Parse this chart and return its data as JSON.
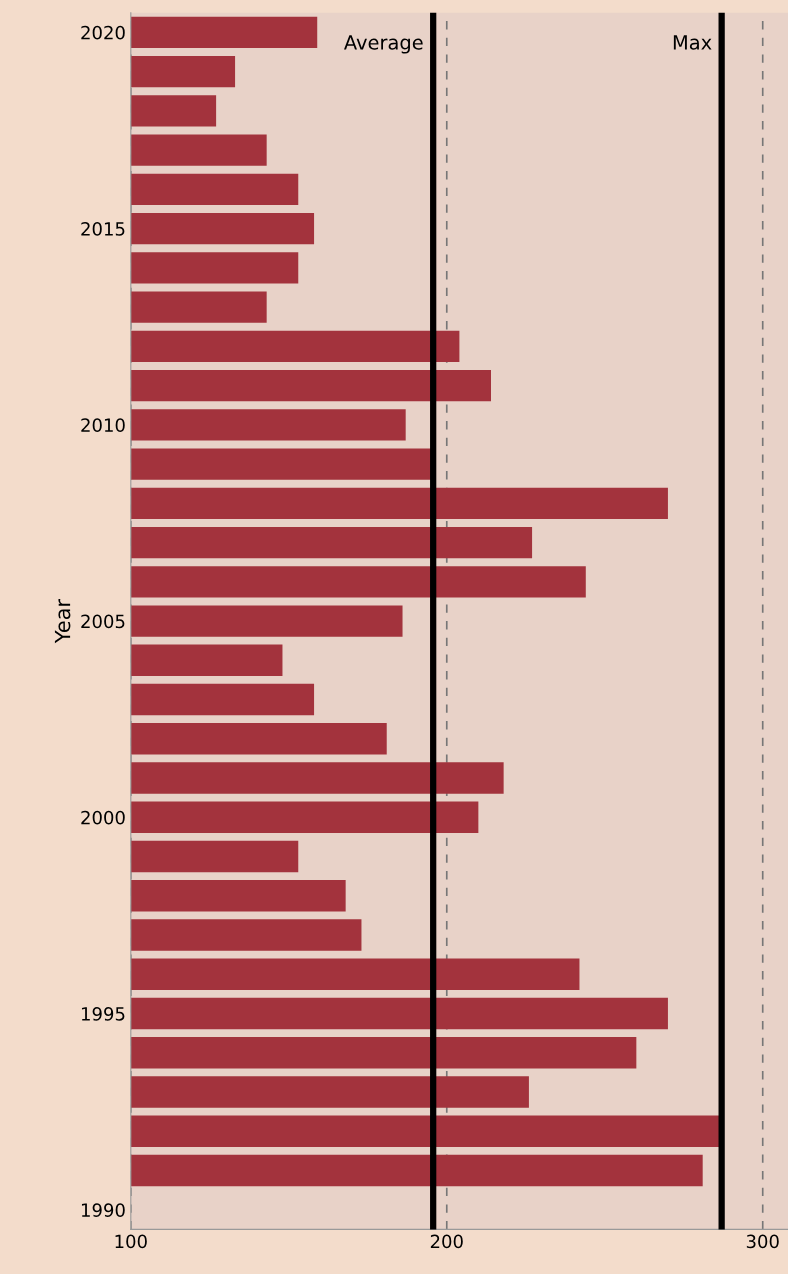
{
  "chart_data": {
    "type": "bar",
    "orientation": "horizontal",
    "ylabel": "Year",
    "categories": [
      "2020",
      null,
      null,
      null,
      null,
      "2015",
      null,
      null,
      null,
      null,
      "2010",
      null,
      null,
      null,
      null,
      "2005",
      null,
      null,
      null,
      null,
      "2000",
      null,
      null,
      null,
      null,
      "1995",
      null,
      null,
      null,
      null,
      "1990"
    ],
    "values": [
      159,
      133,
      127,
      143,
      153,
      158,
      153,
      143,
      204,
      214,
      187,
      195,
      270,
      227,
      244,
      186,
      148,
      158,
      181,
      218,
      210,
      153,
      168,
      173,
      242,
      270,
      260,
      226,
      287,
      281,
      null
    ],
    "color": "#a3333d",
    "xlim": [
      100,
      308
    ],
    "xticks": [
      100,
      200,
      300
    ],
    "grid": "x",
    "ref_lines": [
      {
        "axis": "x",
        "value": 195.7,
        "label": "Average",
        "color": "#000000"
      },
      {
        "axis": "x",
        "value": 287,
        "label": "Max",
        "color": "#000000"
      }
    ]
  }
}
